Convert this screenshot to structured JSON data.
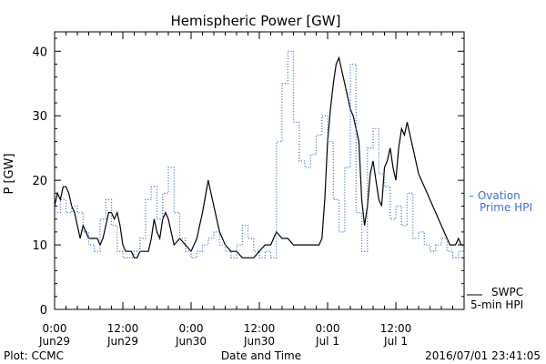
{
  "chart_data": {
    "type": "line",
    "title": "Hemispheric Power [GW]",
    "xlabel": "Date and Time",
    "ylabel": "P [GW]",
    "xlim": [
      0,
      72
    ],
    "ylim": [
      0,
      43
    ],
    "yticks": [
      0,
      10,
      20,
      30,
      40
    ],
    "xticks": [
      {
        "x": 0,
        "time": "0:00",
        "date": "Jun29"
      },
      {
        "x": 12,
        "time": "12:00",
        "date": "Jun29"
      },
      {
        "x": 24,
        "time": "0:00",
        "date": "Jun30"
      },
      {
        "x": 36,
        "time": "12:00",
        "date": "Jun30"
      },
      {
        "x": 48,
        "time": "0:00",
        "date": "Jul 1"
      },
      {
        "x": 60,
        "time": "12:00",
        "date": "Jul 1"
      }
    ],
    "series": [
      {
        "name": "SWPC 5-min HPI",
        "legend_lines": [
          "SWPC",
          "5-min HPI"
        ],
        "color": "#000000",
        "style": "solid",
        "x": [
          0,
          0.5,
          1,
          1.5,
          2,
          2.5,
          3,
          3.5,
          4,
          4.5,
          5,
          5.5,
          6,
          6.5,
          7,
          7.5,
          8,
          8.5,
          9,
          9.5,
          10,
          10.5,
          11,
          11.5,
          12,
          12.5,
          13,
          13.5,
          14,
          14.5,
          15,
          15.5,
          16,
          16.5,
          17,
          17.5,
          18,
          18.5,
          19,
          19.5,
          20,
          20.5,
          21,
          22,
          23,
          24,
          25,
          26,
          27,
          28,
          29,
          30,
          31,
          32,
          33,
          34,
          35,
          36,
          37,
          38,
          39,
          40,
          41,
          42,
          42.5,
          43,
          43.5,
          44,
          44.5,
          45,
          45.5,
          46,
          46.5,
          47,
          47.5,
          48,
          48.5,
          49,
          49.5,
          50,
          50.5,
          51,
          51.5,
          52,
          52.5,
          53,
          53.5,
          54,
          54.5,
          55,
          55.5,
          56,
          56.5,
          57,
          57.5,
          58,
          58.5,
          59,
          59.5,
          60,
          60.5,
          61,
          61.5,
          62,
          62.5,
          63,
          63.5,
          64,
          64.5,
          65,
          65.5,
          66,
          66.5,
          67,
          67.5,
          68,
          68.5,
          69,
          69.5,
          70,
          70.5,
          71,
          71.5,
          72
        ],
        "values": [
          16,
          18,
          17,
          19,
          19,
          18,
          16,
          15,
          13,
          11,
          13,
          12,
          11,
          11,
          11,
          11,
          10,
          11,
          13,
          15,
          15,
          14,
          15,
          13,
          10,
          9,
          9,
          9,
          8,
          8,
          9,
          9,
          9,
          9,
          11,
          14,
          12,
          11,
          14,
          15,
          14,
          12,
          10,
          11,
          10,
          9,
          11,
          15,
          20,
          16,
          12,
          10,
          9,
          9,
          8,
          8,
          8,
          9,
          10,
          10,
          12,
          11,
          11,
          10,
          10,
          10,
          10,
          10,
          10,
          10,
          10,
          10,
          10,
          11,
          17,
          26,
          31,
          35,
          38,
          39,
          37,
          35,
          33,
          31,
          30,
          28,
          26,
          17,
          13,
          16,
          21,
          23,
          20,
          17,
          16,
          22,
          23,
          25,
          22,
          20,
          25,
          28,
          27,
          29,
          27,
          25,
          23,
          21,
          20,
          19,
          18,
          17,
          16,
          15,
          14,
          13,
          12,
          11,
          10,
          10,
          10,
          11,
          10,
          10
        ]
      },
      {
        "name": "Ovation Prime HPI",
        "legend_lines": [
          "– Ovation",
          "Prime HPI"
        ],
        "color": "#3f6fd6",
        "style": "dotted",
        "x": [
          0,
          1,
          2,
          3,
          4,
          5,
          6,
          7,
          8,
          9,
          10,
          11,
          12,
          13,
          14,
          15,
          16,
          17,
          18,
          19,
          20,
          21,
          22,
          23,
          24,
          25,
          26,
          27,
          28,
          29,
          30,
          31,
          32,
          33,
          34,
          35,
          36,
          37,
          38,
          39,
          40,
          41,
          42,
          43,
          44,
          45,
          46,
          47,
          48,
          49,
          50,
          51,
          52,
          53,
          54,
          55,
          56,
          57,
          58,
          59,
          60,
          61,
          62,
          63,
          64,
          65,
          66,
          67,
          68,
          69,
          70,
          71,
          72
        ],
        "values": [
          15,
          17,
          15,
          16,
          15,
          12,
          10,
          9,
          14,
          17,
          13,
          9,
          8,
          8,
          9,
          11,
          17,
          19,
          14,
          18,
          22,
          15,
          11,
          9,
          8,
          9,
          10,
          11,
          12,
          10,
          9,
          8,
          10,
          13,
          11,
          9,
          8,
          9,
          8,
          26,
          35,
          40,
          29,
          23,
          22,
          24,
          27,
          30,
          26,
          17,
          12,
          22,
          38,
          15,
          9,
          25,
          28,
          21,
          19,
          14,
          16,
          13,
          18,
          11,
          12,
          10,
          9,
          10,
          11,
          9,
          8,
          9,
          8
        ]
      }
    ],
    "annotations": {
      "plot_source": "Plot: CCMC",
      "timestamp": "2016/07/01 23:41:05"
    }
  }
}
